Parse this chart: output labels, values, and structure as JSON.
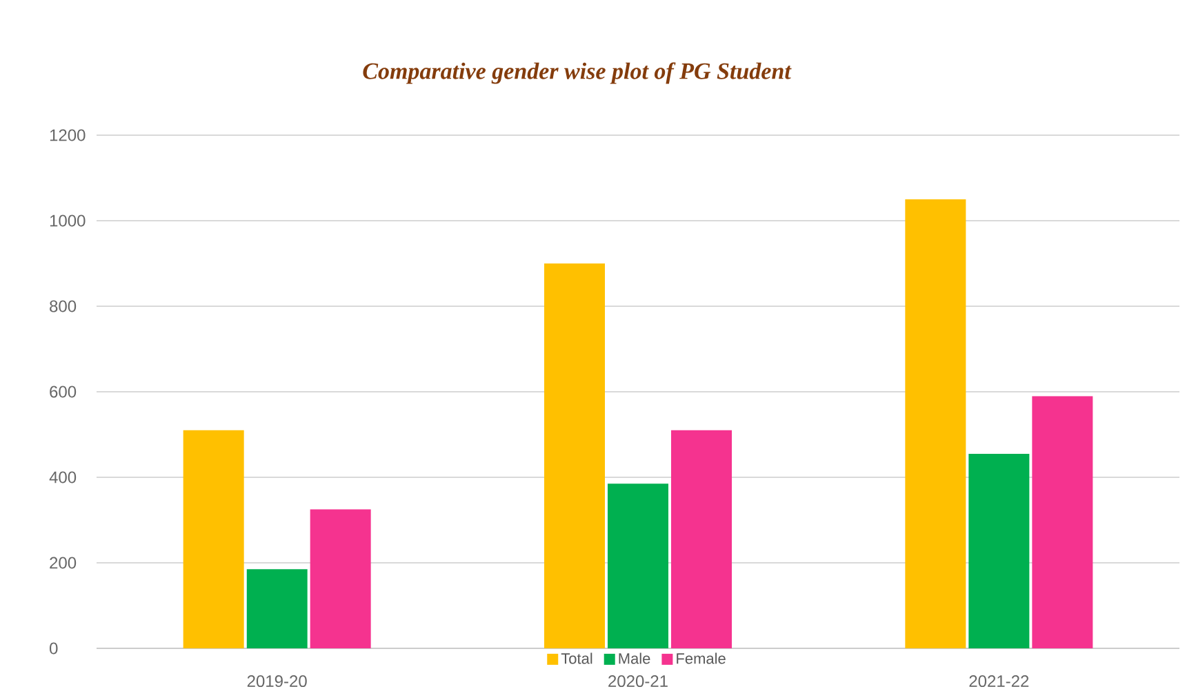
{
  "chart_data": {
    "type": "bar",
    "title": "Comparative gender wise plot of PG Student",
    "categories": [
      "2019-20",
      "2020-21",
      "2021-22"
    ],
    "series": [
      {
        "name": "Total",
        "color": "#ffc000",
        "values": [
          510,
          900,
          1050
        ]
      },
      {
        "name": "Male",
        "color": "#00b050",
        "values": [
          185,
          385,
          455
        ]
      },
      {
        "name": "Female",
        "color": "#f5338f",
        "values": [
          325,
          510,
          590
        ]
      }
    ],
    "ylim": [
      0,
      1200
    ],
    "yticks": [
      0,
      200,
      400,
      600,
      800,
      1000,
      1200
    ],
    "grid": "y",
    "legend": "bottom"
  }
}
